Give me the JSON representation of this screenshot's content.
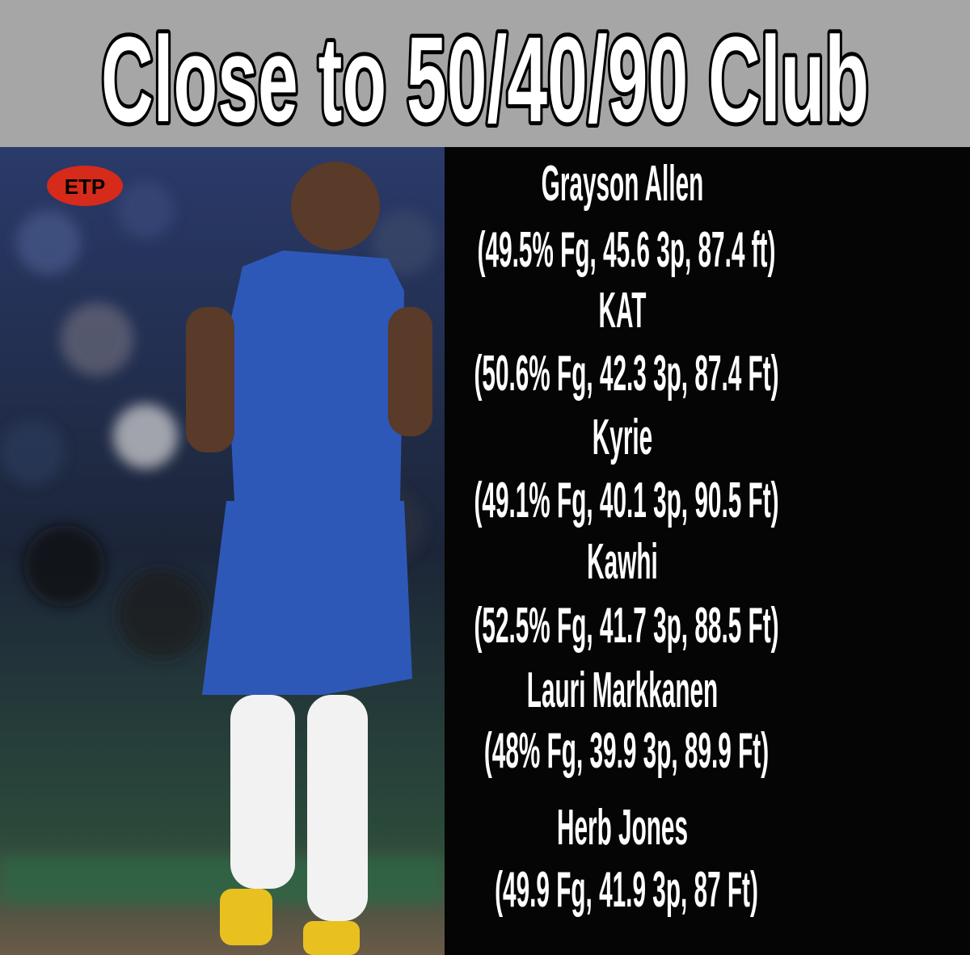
{
  "header": {
    "title": "Close to 50/40/90 Club"
  },
  "logo": "ETP",
  "players": [
    {
      "name": "Grayson Allen",
      "stats": "(49.5% Fg, 45.6 3p, 87.4 ft)"
    },
    {
      "name": "KAT",
      "stats": "(50.6% Fg, 42.3 3p, 87.4 Ft)"
    },
    {
      "name": "Kyrie",
      "stats": "(49.1% Fg, 40.1 3p, 90.5 Ft)"
    },
    {
      "name": "Kawhi",
      "stats": "(52.5% Fg, 41.7 3p, 88.5 Ft)"
    },
    {
      "name": "Lauri Markkanen",
      "stats": "(48% Fg, 39.9 3p, 89.9 Ft)"
    },
    {
      "name": "Herb Jones",
      "stats": "(49.9 Fg, 41.9 3p, 87 Ft)"
    }
  ]
}
